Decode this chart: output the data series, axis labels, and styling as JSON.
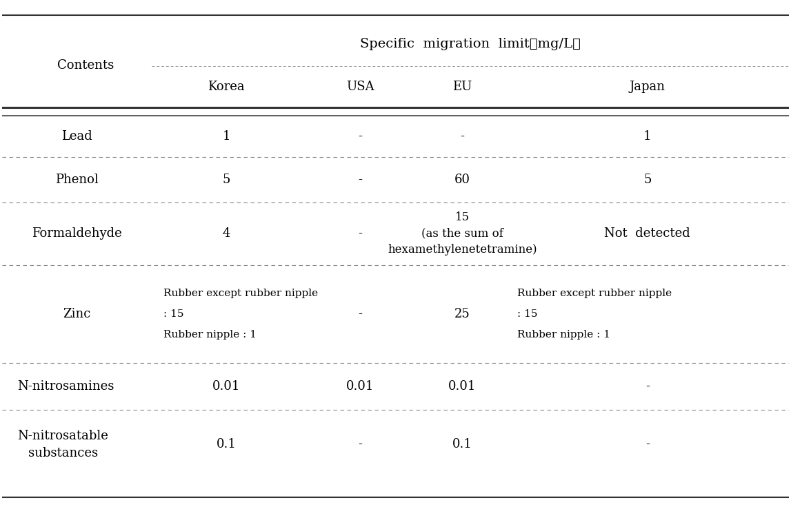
{
  "title": "Specific  migration  limit（mg/L）",
  "col_header_1": "Contents",
  "col_headers": [
    "Korea",
    "USA",
    "EU",
    "Japan"
  ],
  "rows": [
    {
      "content": "Lead",
      "korea": "1",
      "usa": "-",
      "eu": "-",
      "japan": "1"
    },
    {
      "content": "Phenol",
      "korea": "5",
      "usa": "-",
      "eu": "60",
      "japan": "5"
    },
    {
      "content": "Formaldehyde",
      "korea": "4",
      "usa": "-",
      "eu": "15\n(as the sum of\nhexamethylenetetramine)",
      "japan": "Not  detected"
    },
    {
      "content": "Zinc",
      "korea_line1": "Rubber except rubber nipple",
      "korea_line2": ": 15",
      "korea_line3": "Rubber nipple : 1",
      "usa": "-",
      "eu": "25",
      "japan_line1": "Rubber except rubber nipple",
      "japan_line2": ": 15",
      "japan_line3": "Rubber nipple : 1"
    },
    {
      "content": "N-nitrosamines",
      "korea": "0.01",
      "usa": "0.01",
      "eu": "0.01",
      "japan": "-"
    },
    {
      "content": "N-nitrosatable\nsubstances",
      "korea": "0.1",
      "usa": "-",
      "eu": "0.1",
      "japan": "-"
    }
  ],
  "background_color": "#ffffff",
  "text_color": "#000000",
  "font_size": 13,
  "title_font_size": 14,
  "small_font_size": 11
}
